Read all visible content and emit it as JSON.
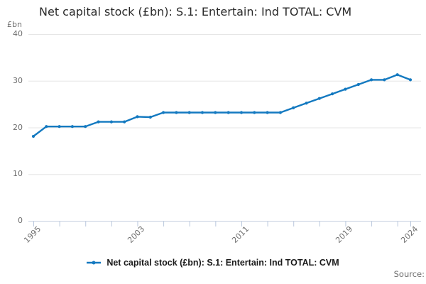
{
  "page": {
    "source_label": "Source:"
  },
  "colors": {
    "line": "#1379c0",
    "grid": "#e6e6e6",
    "axis": "#c4cfdf",
    "tick": "#b9c7dd",
    "muted_text": "#6e6e6e",
    "title_text": "#2b2b2b",
    "legend_text": "#1a1a1a"
  },
  "chart_data": {
    "type": "line",
    "title": "Net capital stock (£bn): S.1: Entertain: Ind TOTAL: CVM",
    "legend": "Net capital stock (£bn): S.1: Entertain: Ind TOTAL: CVM",
    "legend_position": "bottom",
    "ylabel": "£bn",
    "xlabel": "",
    "ylim": [
      0,
      40
    ],
    "yticks": [
      0,
      10,
      20,
      30,
      40
    ],
    "grid": "horizontal",
    "xticks": [
      1995,
      1997,
      1999,
      2001,
      2003,
      2005,
      2007,
      2009,
      2011,
      2013,
      2015,
      2017,
      2019,
      2021,
      2023,
      2024
    ],
    "xtick_labels": [
      "1995",
      "2003",
      "2011",
      "2019",
      "2024"
    ],
    "x": [
      1995,
      1996,
      1997,
      1998,
      1999,
      2000,
      2001,
      2002,
      2003,
      2004,
      2005,
      2006,
      2007,
      2008,
      2009,
      2010,
      2011,
      2012,
      2013,
      2014,
      2015,
      2016,
      2017,
      2018,
      2019,
      2020,
      2021,
      2022,
      2023,
      2024
    ],
    "values": [
      18.1,
      20.2,
      20.2,
      20.2,
      20.2,
      21.2,
      21.2,
      21.2,
      22.3,
      22.2,
      23.2,
      23.2,
      23.2,
      23.2,
      23.2,
      23.2,
      23.2,
      23.2,
      23.2,
      23.2,
      24.2,
      25.2,
      26.2,
      27.2,
      28.2,
      29.2,
      30.2,
      30.2,
      31.3,
      30.2
    ]
  }
}
